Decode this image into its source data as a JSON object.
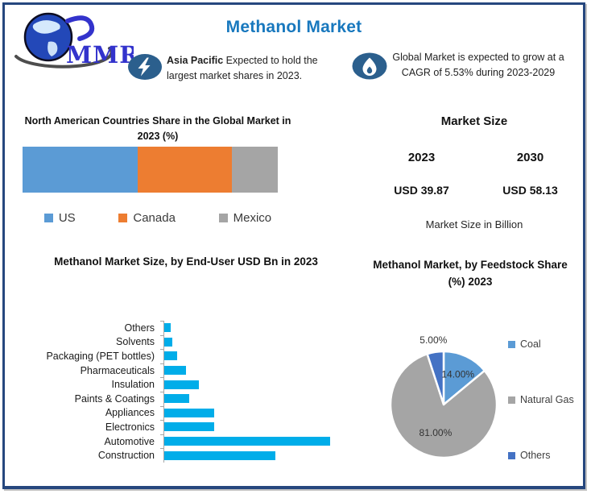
{
  "page": {
    "title": "Methanol Market"
  },
  "logo": {
    "text": "MMR"
  },
  "callouts": [
    {
      "icon": "lightning-bolt-icon",
      "lead": "Asia Pacific",
      "text": " Expected to hold the largest market shares in 2023."
    },
    {
      "icon": "flame-icon",
      "text": "Global Market is expected to grow at a CAGR of 5.53% during 2023-2029"
    }
  ],
  "market_size": {
    "heading": "Market Size",
    "years": [
      "2023",
      "2030"
    ],
    "values": [
      "USD 39.87",
      "USD 58.13"
    ],
    "note": "Market Size in Billion"
  },
  "colors": {
    "frame_border": "#26477e",
    "title_blue": "#1878be",
    "icon_ellipse": "#2b5f8d",
    "enduser_bar": "#00ade9",
    "axis_gray": "#a6a6a6"
  },
  "chart_data": [
    {
      "type": "bar",
      "subtype": "stacked-horizontal",
      "title": "North American Countries Share in the Global Market in 2023 (%)",
      "series": [
        {
          "name": "US",
          "value": 45,
          "color": "#5b9bd5"
        },
        {
          "name": "Canada",
          "value": 37,
          "color": "#ed7d31"
        },
        {
          "name": "Mexico",
          "value": 18,
          "color": "#a5a5a5"
        }
      ],
      "legend_position": "bottom",
      "value_labels_shown": false
    },
    {
      "type": "bar",
      "subtype": "horizontal",
      "title": "Methanol Market Size, by End-User USD Bn  in 2023",
      "categories": [
        "Others",
        "Solvents",
        "Packaging (PET bottles)",
        "Pharmaceuticals",
        "Insulation",
        "Paints & Coatings",
        "Appliances",
        "Electronics",
        "Automotive",
        "Construction"
      ],
      "values": [
        0.4,
        0.5,
        0.8,
        1.3,
        2.1,
        1.5,
        3.0,
        3.0,
        10.0,
        6.7
      ],
      "bar_color": "#00ade9",
      "xlim": [
        0,
        10
      ],
      "axis_tick_labels_shown": false,
      "grid": false
    },
    {
      "type": "pie",
      "title": "Methanol Market, by Feedstock Share (%) 2023",
      "slices": [
        {
          "label": "Coal",
          "value": 14,
          "display": "14.00%",
          "color": "#5b9bd5",
          "label_inside": true
        },
        {
          "label": "Natural Gas",
          "value": 81,
          "display": "81.00%",
          "color": "#a5a5a5",
          "label_inside": true
        },
        {
          "label": "Others",
          "value": 5,
          "display": "5.00%",
          "color": "#4472c4",
          "label_inside": false
        }
      ],
      "start_angle_deg": -90,
      "direction": "clockwise",
      "legend_position": "right"
    }
  ]
}
